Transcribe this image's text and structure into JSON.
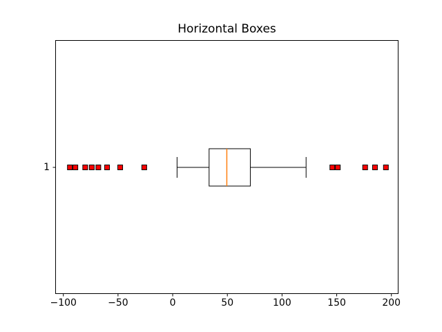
{
  "chart_data": {
    "type": "boxplot",
    "orientation": "horizontal",
    "title": "Horizontal Boxes",
    "y_category": "1",
    "xlim": [
      -107.4,
      206.5
    ],
    "x_ticks": [
      -100,
      -50,
      0,
      50,
      100,
      150,
      200
    ],
    "x_tick_labels": [
      "−100",
      "−50",
      "0",
      "50",
      "100",
      "150",
      "200"
    ],
    "box": {
      "whisker_low": 4,
      "q1": 33.3,
      "median": 49.5,
      "q3": 71,
      "whisker_high": 122,
      "fliers_low": [
        -94,
        -89,
        -80,
        -74,
        -68,
        -60,
        -48,
        -26
      ],
      "fliers_high": [
        146,
        151,
        176,
        185,
        195
      ]
    },
    "legend": null,
    "grid": false,
    "colors": {
      "line": "#000000",
      "median": "#ff7f0e",
      "flier_fill": "#ff0000",
      "flier_edge": "#000000",
      "background": "#ffffff"
    }
  }
}
